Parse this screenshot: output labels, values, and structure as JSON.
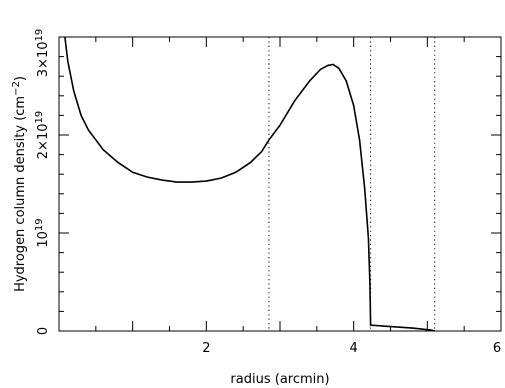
{
  "chart_data": {
    "type": "line",
    "xlabel": "radius (arcmin)",
    "ylabel": "Hydrogen column density (cm",
    "ylabel_exp": "−2",
    "ylabel_close": ")",
    "xlim": [
      0,
      6
    ],
    "ylim": [
      0,
      3e+19
    ],
    "x_ticks": [
      2,
      4,
      6
    ],
    "x_tick_labels": [
      "2",
      "4",
      "6"
    ],
    "y_ticks": [
      0,
      1e+19,
      2e+19,
      3e+19
    ],
    "y_tick_labels": [
      {
        "mantissa": "0",
        "times": "",
        "exp": ""
      },
      {
        "mantissa": "10",
        "times": "",
        "exp": "19"
      },
      {
        "mantissa": "2×10",
        "times": "",
        "exp": "19"
      },
      {
        "mantissa": "3×10",
        "times": "",
        "exp": "19"
      }
    ],
    "vertical_lines_x": [
      2.85,
      4.23,
      5.1
    ],
    "series": [
      {
        "points": [
          [
            0.08,
            3e+19
          ],
          [
            0.12,
            2.75e+19
          ],
          [
            0.2,
            2.45e+19
          ],
          [
            0.3,
            2.2e+19
          ],
          [
            0.4,
            2.05e+19
          ],
          [
            0.6,
            1.85e+19
          ],
          [
            0.8,
            1.72e+19
          ],
          [
            1.0,
            1.62e+19
          ],
          [
            1.2,
            1.57e+19
          ],
          [
            1.4,
            1.54e+19
          ],
          [
            1.6,
            1.52e+19
          ],
          [
            1.8,
            1.52e+19
          ],
          [
            2.0,
            1.53e+19
          ],
          [
            2.2,
            1.56e+19
          ],
          [
            2.4,
            1.62e+19
          ],
          [
            2.6,
            1.72e+19
          ],
          [
            2.75,
            1.83e+19
          ],
          [
            2.85,
            1.95e+19
          ],
          [
            2.9,
            2e+19
          ],
          [
            3.0,
            2.1e+19
          ],
          [
            3.2,
            2.35e+19
          ],
          [
            3.4,
            2.55e+19
          ],
          [
            3.55,
            2.67e+19
          ],
          [
            3.65,
            2.71e+19
          ],
          [
            3.72,
            2.72e+19
          ],
          [
            3.8,
            2.68e+19
          ],
          [
            3.9,
            2.55e+19
          ],
          [
            4.0,
            2.3e+19
          ],
          [
            4.08,
            1.95e+19
          ],
          [
            4.15,
            1.45e+19
          ],
          [
            4.2,
            9.5e+18
          ],
          [
            4.22,
            5e+18
          ],
          [
            4.23,
            6e+17
          ],
          [
            4.5,
            4.5e+17
          ],
          [
            4.8,
            3e+17
          ],
          [
            5.05,
            1e+17
          ],
          [
            5.1,
            0.0
          ]
        ]
      }
    ],
    "grid": false
  }
}
